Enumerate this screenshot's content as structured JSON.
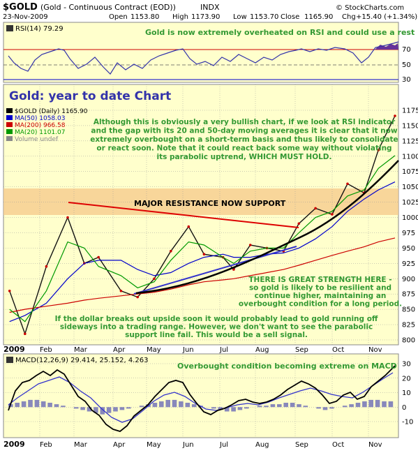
{
  "header": {
    "symbol": "$GOLD",
    "description": "(Gold - Continuous Contract (EOD))",
    "exchange": "INDX",
    "date": "23-Nov-2009",
    "open_label": "Open",
    "open": "1153.80",
    "high_label": "High",
    "high": "1173.90",
    "low_label": "Low",
    "low": "1153.70",
    "close_label": "Close",
    "close": "1165.90",
    "volume": "Volume undef",
    "change_label": "Chg",
    "change": "+15.40 (+1.34%)",
    "watermark": "© StockCharts.com"
  },
  "rsi_panel": {
    "label": "RSI(14) 79.29",
    "annotation": "Gold is now extremely overheated on RSI and could use a rest",
    "ticks": [
      "70",
      "50",
      "30"
    ],
    "fill_color": "#663399"
  },
  "price_panel": {
    "title": "Gold: year to date Chart",
    "legend": [
      {
        "text": "$GOLD (Daily) 1165.90",
        "color": "#000000"
      },
      {
        "text": "MA(50) 1058.03",
        "color": "#0000cc"
      },
      {
        "text": "MA(200) 966.58",
        "color": "#cc0000"
      },
      {
        "text": "MA(20) 1101.07",
        "color": "#009900"
      },
      {
        "text": "Volume undef",
        "color": "#888888"
      }
    ],
    "annotation_main": [
      "Although this is obviously a very bullish chart, if we look at RSI indicator",
      "and the gap with its 20 and 50-day moving averages it is clear that it now",
      "extremely overbought on a short-term basis and thus likely to consolidate",
      "or react soon. Note that it could react back some way without violating",
      "its parabolic uptrend, WHICH MUST HOLD."
    ],
    "resistance_label": "MAJOR RESISTANCE NOW SUPPORT",
    "strength_annotation": [
      "THERE IS GREAT STRENGTH HERE -",
      "so gold is likely to be resilient and",
      "continue higher, maintaining an",
      "overbought condition for a long period."
    ],
    "dollar_annotation": [
      "If the dollar breaks out upside soon it would probably lead to gold running off",
      "sideways into a trading range. However, we don't want to see the parabolic",
      "support line fail. This would be a sell signal."
    ],
    "y_ticks": [
      "1175",
      "1150",
      "1125",
      "1100",
      "1075",
      "1050",
      "1025",
      "1000",
      "975",
      "950",
      "925",
      "900",
      "875",
      "850",
      "825",
      "800"
    ],
    "x_labels": [
      "2009",
      "Feb",
      "Mar",
      "Apr",
      "May",
      "Jun",
      "Jul",
      "Aug",
      "Sep",
      "Oct",
      "Nov"
    ]
  },
  "macd_panel": {
    "label": "MACD(12,26,9) 29.414, 25.152, 4.263",
    "annotation": "Overbought condition becoming extreme on MACD",
    "y_ticks": [
      "30",
      "20",
      "10",
      "0",
      "-10"
    ],
    "x_labels": [
      "2009",
      "Feb",
      "Mar",
      "Apr",
      "May",
      "Jun",
      "Jul",
      "Aug",
      "Sep",
      "Oct",
      "Nov"
    ]
  },
  "chart_data": {
    "type": "line",
    "symbol": "$GOLD",
    "x": [
      "2009-01-02",
      "2009-01-15",
      "2009-02-02",
      "2009-02-20",
      "2009-03-06",
      "2009-03-18",
      "2009-04-06",
      "2009-04-20",
      "2009-05-04",
      "2009-05-18",
      "2009-06-02",
      "2009-06-15",
      "2009-07-01",
      "2009-07-10",
      "2009-07-24",
      "2009-08-07",
      "2009-08-21",
      "2009-09-03",
      "2009-09-17",
      "2009-10-01",
      "2009-10-14",
      "2009-10-28",
      "2009-11-09",
      "2009-11-23"
    ],
    "series": [
      {
        "name": "$GOLD (Daily)",
        "values": [
          880,
          810,
          920,
          1000,
          925,
          935,
          880,
          870,
          900,
          945,
          985,
          940,
          935,
          915,
          955,
          950,
          945,
          990,
          1015,
          1005,
          1055,
          1040,
          1110,
          1165.9
        ]
      },
      {
        "name": "MA(50)",
        "values": [
          830,
          840,
          860,
          900,
          925,
          930,
          930,
          915,
          905,
          910,
          925,
          935,
          940,
          935,
          935,
          940,
          942,
          950,
          965,
          985,
          1010,
          1030,
          1045,
          1058.03
        ]
      },
      {
        "name": "MA(200)",
        "values": [
          845,
          850,
          855,
          860,
          865,
          868,
          872,
          875,
          878,
          883,
          890,
          895,
          898,
          900,
          905,
          910,
          915,
          922,
          930,
          938,
          945,
          952,
          960,
          966.58
        ]
      },
      {
        "name": "MA(20)",
        "values": [
          850,
          830,
          880,
          960,
          950,
          920,
          905,
          885,
          895,
          930,
          960,
          955,
          935,
          925,
          945,
          950,
          950,
          975,
          1000,
          1010,
          1035,
          1045,
          1080,
          1101.07
        ]
      }
    ],
    "ylim": [
      790,
      1180
    ],
    "rsi": {
      "name": "RSI(14)",
      "last": 79.29,
      "ylim": [
        30,
        70
      ]
    },
    "macd": {
      "name": "MACD(12,26,9)",
      "macd": 29.414,
      "signal": 25.152,
      "histogram": 4.263,
      "ylim": [
        -20,
        35
      ]
    }
  }
}
